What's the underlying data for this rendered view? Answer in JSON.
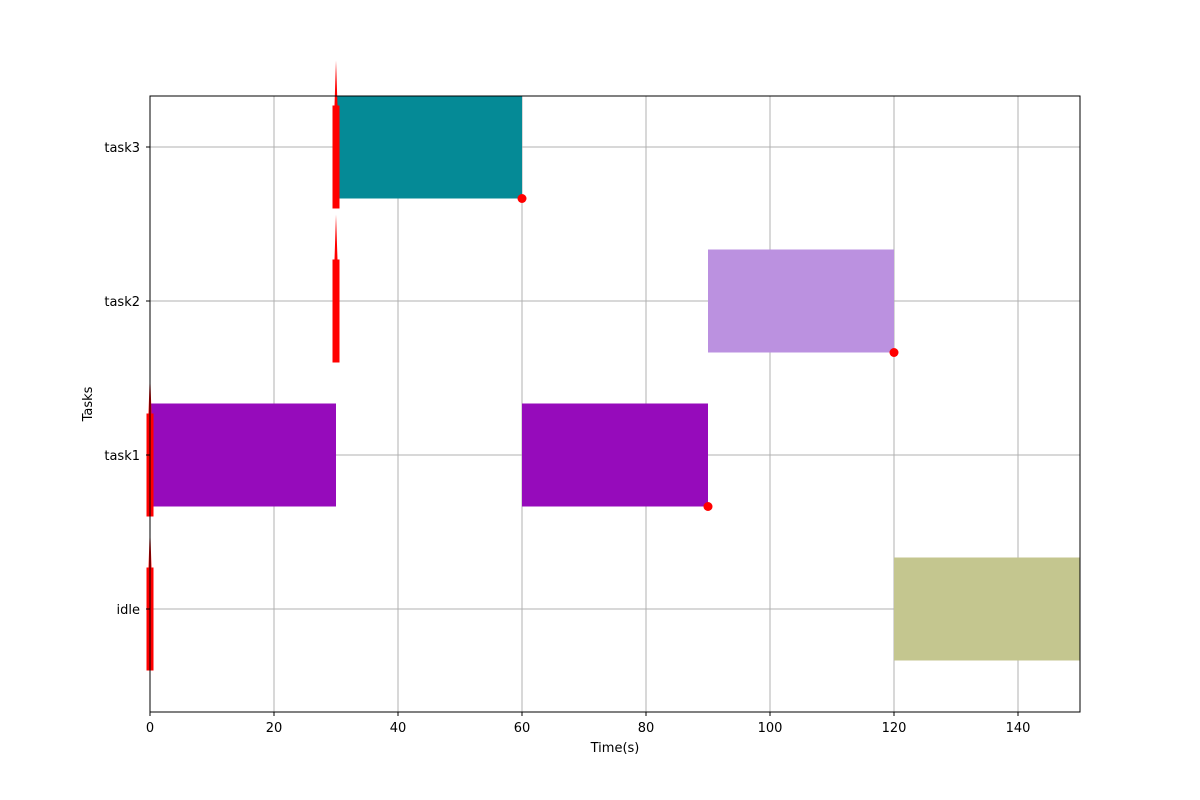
{
  "chart_data": {
    "type": "gantt",
    "xlabel": "Time(s)",
    "ylabel": "Tasks",
    "xlim": [
      0,
      150
    ],
    "xticks": [
      0,
      20,
      40,
      60,
      80,
      100,
      120,
      140
    ],
    "xtick_labels": [
      "0",
      "20",
      "40",
      "60",
      "80",
      "100",
      "120",
      "140"
    ],
    "categories": [
      "idle",
      "task1",
      "task2",
      "task3"
    ],
    "grid": true,
    "bars": [
      {
        "task": "task1",
        "start": 0,
        "end": 30,
        "color": "#960bbb"
      },
      {
        "task": "task3",
        "start": 30,
        "end": 60,
        "color": "#058a96"
      },
      {
        "task": "task1",
        "start": 60,
        "end": 90,
        "color": "#960bbb"
      },
      {
        "task": "task2",
        "start": 90,
        "end": 120,
        "color": "#bb91e0"
      },
      {
        "task": "idle",
        "start": 120,
        "end": 150,
        "color": "#c4c68f"
      }
    ],
    "release_markers": [
      {
        "task": "idle",
        "time": 0
      },
      {
        "task": "task1",
        "time": 0
      },
      {
        "task": "task2",
        "time": 30
      },
      {
        "task": "task3",
        "time": 30
      }
    ],
    "deadline_markers": [
      {
        "task": "task3",
        "time": 60
      },
      {
        "task": "task1",
        "time": 90
      },
      {
        "task": "task2",
        "time": 120
      }
    ],
    "marker_color": "#ff0000"
  }
}
